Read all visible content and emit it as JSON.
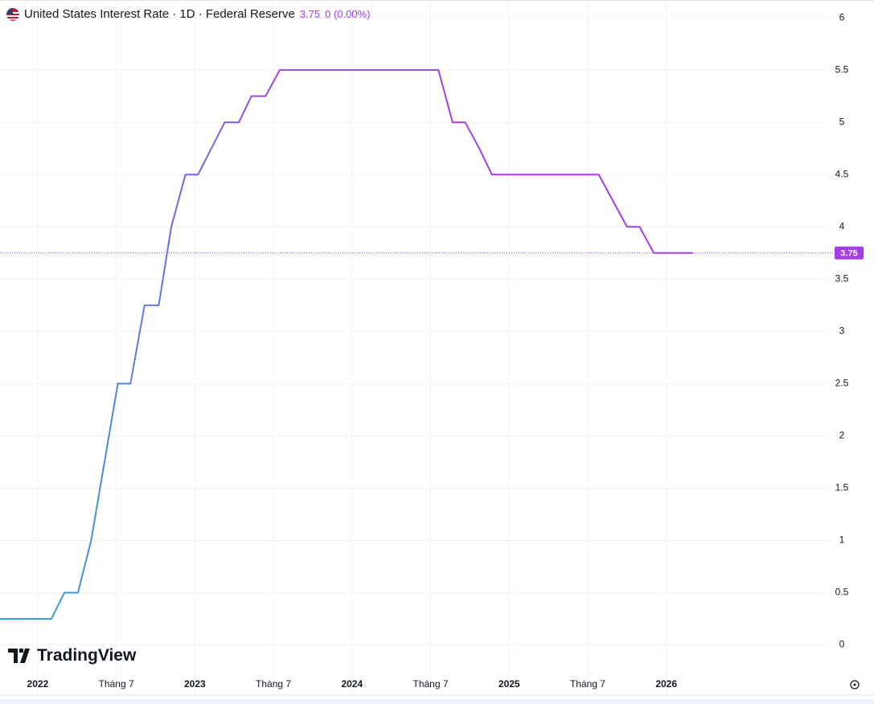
{
  "header": {
    "title": "United States Interest Rate · 1D · Federal Reserve",
    "change": "0 (0.00%)"
  },
  "watermark": "TradingView",
  "chart_data": {
    "type": "line",
    "last_value": 3.75,
    "series": [
      {
        "colors": [
          "#22b3d6",
          "#a23de8"
        ],
        "x": [
          2021.76,
          2022.087,
          2022.17,
          2022.256,
          2022.34,
          2022.51,
          2022.59,
          2022.68,
          2022.77,
          2022.85,
          2022.94,
          2023.02,
          2023.19,
          2023.28,
          2023.36,
          2023.45,
          2023.54,
          2024.55,
          2024.64,
          2024.72,
          2024.81,
          2024.89,
          2025.57,
          2025.66,
          2025.75,
          2025.83,
          2025.92,
          2026.17
        ],
        "values": [
          0.25,
          0.25,
          0.5,
          0.5,
          1.0,
          2.5,
          2.5,
          3.25,
          3.25,
          4.0,
          4.5,
          4.5,
          5.0,
          5.0,
          5.25,
          5.25,
          5.5,
          5.5,
          5.0,
          5.0,
          4.75,
          4.5,
          4.5,
          4.25,
          4.0,
          4.0,
          3.75,
          3.75
        ]
      }
    ],
    "xlim": [
      2021.76,
      2027.03
    ],
    "xticks": [
      {
        "value": 2022,
        "label": "2022"
      },
      {
        "value": 2022.5,
        "label": "Tháng 7"
      },
      {
        "value": 2023,
        "label": "2023"
      },
      {
        "value": 2023.5,
        "label": "Tháng 7"
      },
      {
        "value": 2024,
        "label": "2024"
      },
      {
        "value": 2024.5,
        "label": "Tháng 7"
      },
      {
        "value": 2025,
        "label": "2025"
      },
      {
        "value": 2025.5,
        "label": "Tháng 7"
      },
      {
        "value": 2026,
        "label": "2026"
      }
    ],
    "ylim": [
      -0.48,
      6.17
    ],
    "yticks": [
      0,
      0.5,
      1,
      1.5,
      2,
      2.5,
      3,
      3.5,
      4,
      4.5,
      5,
      5.5,
      6
    ],
    "grid": true
  }
}
